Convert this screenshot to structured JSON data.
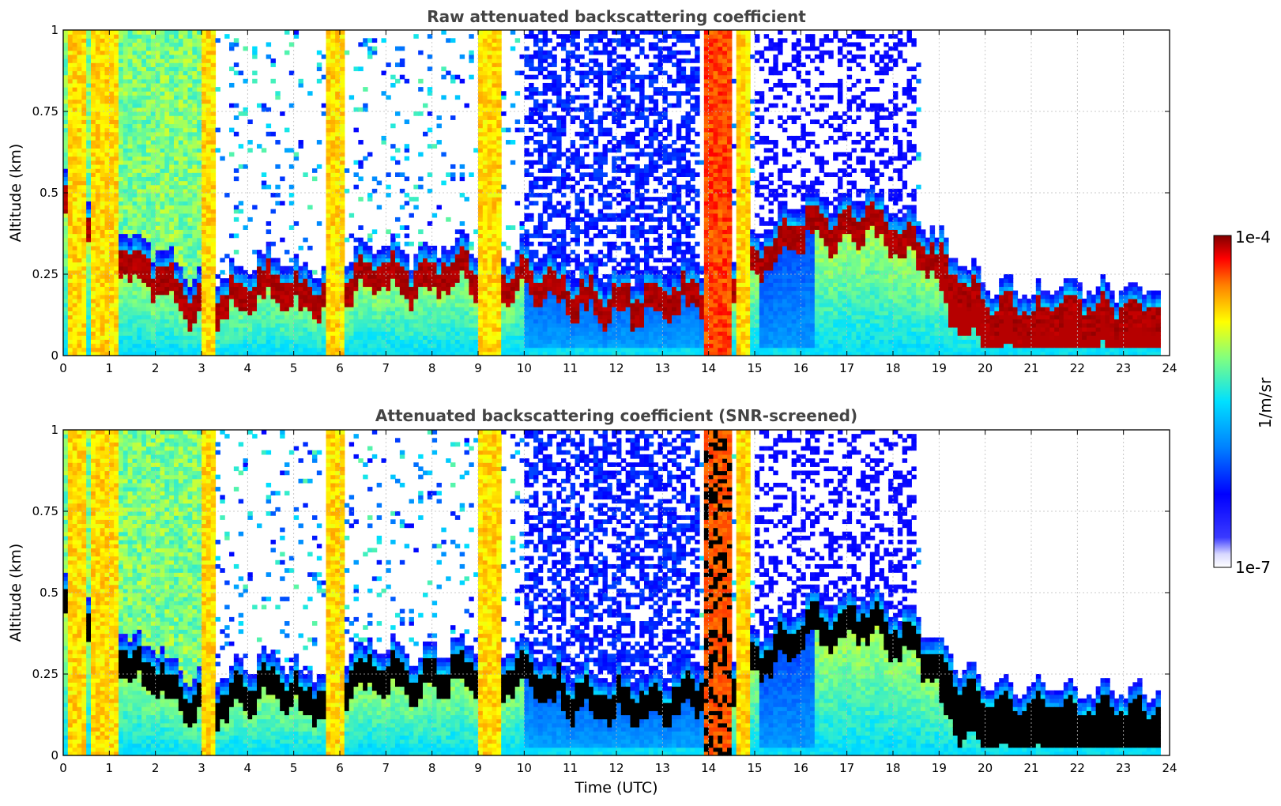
{
  "chart_data": [
    {
      "type": "heatmap",
      "title": "Raw attenuated backscattering coefficient",
      "xlabel": "",
      "ylabel": "Altitude (km)",
      "xlim": [
        0,
        24
      ],
      "ylim": [
        0,
        1
      ],
      "xticks": [
        "0",
        "1",
        "2",
        "3",
        "4",
        "5",
        "6",
        "7",
        "8",
        "9",
        "10",
        "11",
        "12",
        "13",
        "14",
        "15",
        "16",
        "17",
        "18",
        "19",
        "20",
        "21",
        "22",
        "23",
        "24"
      ],
      "yticks": [
        "0",
        "0.25",
        "0.5",
        "0.75",
        "1"
      ],
      "grid": true,
      "screened": false,
      "data_end_hour": 23.8,
      "boundary_layer_top_km": [
        [
          0,
          0.52
        ],
        [
          0.5,
          0.45
        ],
        [
          1,
          0.35
        ],
        [
          1.5,
          0.3
        ],
        [
          2,
          0.26
        ],
        [
          2.5,
          0.2
        ],
        [
          3,
          0.17
        ],
        [
          3.5,
          0.18
        ],
        [
          4,
          0.22
        ],
        [
          4.5,
          0.24
        ],
        [
          5,
          0.2
        ],
        [
          5.5,
          0.18
        ],
        [
          6,
          0.22
        ],
        [
          6.5,
          0.26
        ],
        [
          7,
          0.27
        ],
        [
          7.5,
          0.24
        ],
        [
          8,
          0.26
        ],
        [
          8.5,
          0.28
        ],
        [
          9,
          0.28
        ],
        [
          9.5,
          0.26
        ],
        [
          10,
          0.25
        ],
        [
          11,
          0.2
        ],
        [
          12,
          0.18
        ],
        [
          13,
          0.18
        ],
        [
          14,
          0.22
        ],
        [
          15,
          0.3
        ],
        [
          16,
          0.4
        ],
        [
          16.5,
          0.42
        ],
        [
          17,
          0.41
        ],
        [
          17.5,
          0.44
        ],
        [
          18,
          0.38
        ],
        [
          18.5,
          0.35
        ],
        [
          19,
          0.3
        ],
        [
          19.5,
          0.2
        ],
        [
          20,
          0.15
        ],
        [
          21,
          0.13
        ],
        [
          22,
          0.13
        ],
        [
          23,
          0.14
        ],
        [
          23.8,
          0.14
        ]
      ],
      "columns_of_high_backscatter_hours": [
        [
          0.1,
          0.5
        ],
        [
          0.6,
          1.2
        ],
        [
          3.0,
          3.3
        ],
        [
          5.7,
          6.1
        ],
        [
          9.0,
          9.5
        ],
        [
          13.9,
          14.5
        ],
        [
          14.6,
          14.9
        ]
      ]
    },
    {
      "type": "heatmap",
      "title": "Attenuated backscattering coefficient (SNR-screened)",
      "xlabel": "Time (UTC)",
      "ylabel": "Altitude (km)",
      "xlim": [
        0,
        24
      ],
      "ylim": [
        0,
        1
      ],
      "xticks": [
        "0",
        "1",
        "2",
        "3",
        "4",
        "5",
        "6",
        "7",
        "8",
        "9",
        "10",
        "11",
        "12",
        "13",
        "14",
        "15",
        "16",
        "17",
        "18",
        "19",
        "20",
        "21",
        "22",
        "23",
        "24"
      ],
      "yticks": [
        "0",
        "0.25",
        "0.5",
        "0.75",
        "1"
      ],
      "grid": true,
      "screened": true,
      "data_end_hour": 23.8
    }
  ],
  "colorbar": {
    "max_label": "1e-4",
    "min_label": "1e-7",
    "label": "1/m/sr",
    "scale": "log",
    "colormap": "jet",
    "min_value": 1e-07,
    "max_value": 0.0001
  },
  "colors": {
    "saturated_black": "#000000",
    "title_gray": "#444444",
    "grid": "#bbbbbb"
  }
}
